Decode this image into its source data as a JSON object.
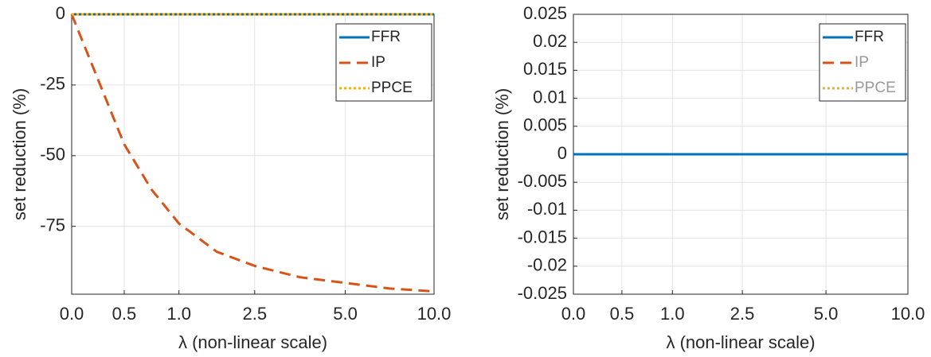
{
  "chart_data": [
    {
      "type": "line",
      "xlabel": "λ (non-linear scale)",
      "ylabel": "set reduction (%)",
      "x": [
        0,
        0.25,
        0.5,
        0.75,
        1,
        1.75,
        2.5,
        3.75,
        5,
        7.5,
        10
      ],
      "xlim": [
        0,
        10
      ],
      "xticks": [
        {
          "value": 0,
          "label": "0.0"
        },
        0.5,
        {
          "value": 1,
          "label": "1.0"
        },
        2.5,
        {
          "value": 5,
          "label": "5.0"
        },
        {
          "value": 10,
          "label": "10.0"
        }
      ],
      "xscale": "non-linear",
      "ylim": [
        -99,
        0
      ],
      "yticks": [
        0,
        -25,
        -50,
        -75
      ],
      "grid": true,
      "legend": "northeast",
      "series": [
        {
          "name": "FFR",
          "color": "#0072BD",
          "style": "solid",
          "values": [
            0,
            0,
            0,
            0,
            0,
            0,
            0,
            0,
            0,
            0,
            0
          ]
        },
        {
          "name": "IP",
          "color": "#D95319",
          "style": "dashed",
          "values": [
            0,
            -23,
            -46,
            -62,
            -74,
            -84,
            -89,
            -93,
            -95,
            -97,
            -98
          ]
        },
        {
          "name": "PPCE",
          "color": "#EDB120",
          "style": "dotted",
          "values": [
            0,
            0,
            0,
            0,
            0,
            0,
            0,
            0,
            0,
            0,
            0
          ]
        }
      ]
    },
    {
      "type": "line",
      "xlabel": "λ (non-linear scale)",
      "ylabel": "set reduction (%)",
      "x": [
        0,
        0.5,
        1,
        2.5,
        5,
        10
      ],
      "xlim": [
        0,
        10
      ],
      "xticks": [
        {
          "value": 0,
          "label": "0.0"
        },
        0.5,
        {
          "value": 1,
          "label": "1.0"
        },
        2.5,
        {
          "value": 5,
          "label": "5.0"
        },
        {
          "value": 10,
          "label": "10.0"
        }
      ],
      "xscale": "non-linear",
      "ylim": [
        -0.025,
        0.025
      ],
      "yticks": [
        0.025,
        0.02,
        0.015,
        0.01,
        0.005,
        0,
        -0.005,
        -0.01,
        -0.015,
        -0.02,
        -0.025
      ],
      "grid": true,
      "legend": "northeast",
      "series": [
        {
          "name": "IP",
          "color": "#D95319",
          "style": "dashed",
          "label_color": "#9a9a9a",
          "values": [
            0,
            0,
            0,
            0,
            0,
            0
          ]
        },
        {
          "name": "PPCE",
          "color": "#EDB120",
          "style": "dotted",
          "label_color": "#9a9a9a",
          "values": [
            0,
            0,
            0,
            0,
            0,
            0
          ]
        },
        {
          "name": "FFR",
          "color": "#0072BD",
          "style": "solid",
          "values": [
            0,
            0,
            0,
            0,
            0,
            0
          ]
        }
      ]
    }
  ]
}
